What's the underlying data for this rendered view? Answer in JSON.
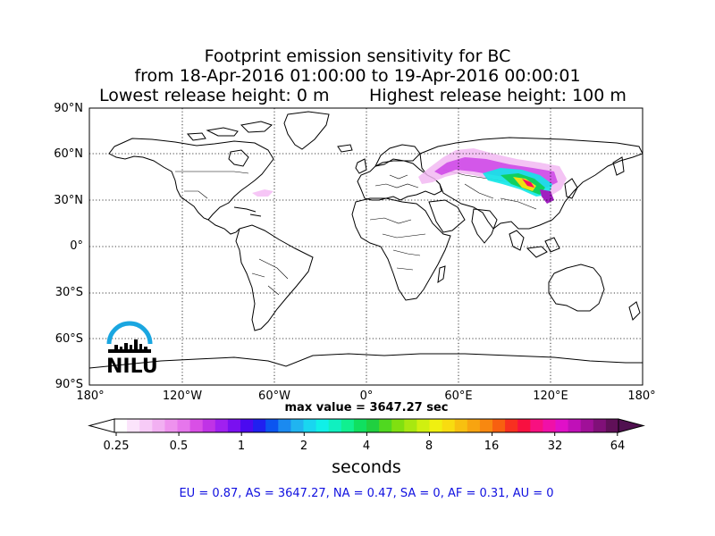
{
  "title": {
    "line1": "Footprint emission sensitivity for BC",
    "line2": "from 18-Apr-2016 01:00:00 to 19-Apr-2016 00:00:01",
    "line3a": "Lowest release height: 0 m",
    "line3b": "Highest release height: 100 m"
  },
  "axes": {
    "lat_labels": [
      "90°N",
      "60°N",
      "30°N",
      "0°",
      "30°S",
      "60°S",
      "90°S"
    ],
    "lon_labels": [
      "180°",
      "120°W",
      "60°W",
      "0°",
      "60°E",
      "120°E",
      "180°"
    ],
    "grid": "dotted"
  },
  "max_value": "max value = 3647.27 sec",
  "colorbar": {
    "labels": [
      "0.25",
      "0.5",
      "1",
      "2",
      "4",
      "8",
      "16",
      "32",
      "64"
    ],
    "unit": "seconds",
    "colors": [
      "#ffffff",
      "#fbe4fb",
      "#f7cbf7",
      "#f2b0f2",
      "#ee92ee",
      "#e676ec",
      "#d94fe6",
      "#c033e6",
      "#a020f0",
      "#7a10f0",
      "#4b0af0",
      "#2020f0",
      "#0b55f0",
      "#1b8af0",
      "#20b4f0",
      "#19d6f0",
      "#10f0e8",
      "#10f0c0",
      "#10f090",
      "#10e060",
      "#20d040",
      "#50d820",
      "#80e010",
      "#a8e810",
      "#d0f010",
      "#f0f010",
      "#f8dc10",
      "#f8c010",
      "#f8a410",
      "#f88810",
      "#f86010",
      "#f83020",
      "#f81040",
      "#f81080",
      "#f010a8",
      "#e010c8",
      "#c010b8",
      "#a01098",
      "#801078",
      "#601058"
    ]
  },
  "regions": "EU = 0.87,  AS = 3647.27,  NA = 0.47,  SA = 0,  AF = 0.31,  AU = 0",
  "logo": {
    "text": "NILU",
    "arc_color": "#1aa6e0"
  }
}
